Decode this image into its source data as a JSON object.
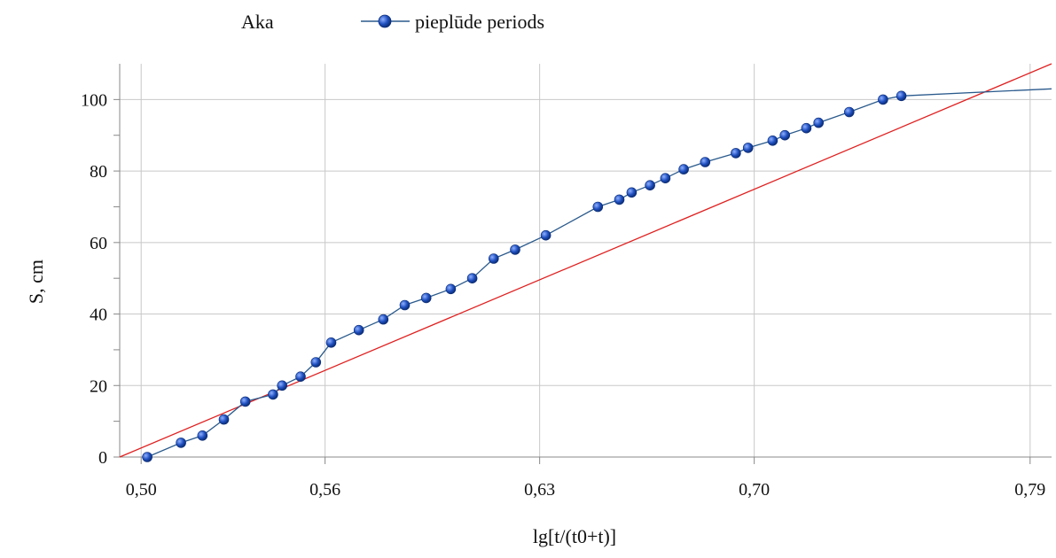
{
  "chart_data": {
    "type": "scatter",
    "title": "",
    "legend": {
      "series_label": "Aka",
      "placement": "top"
    },
    "xlabel": "lg[t/(t0+t)]",
    "ylabel": "S, cm",
    "xlim": [
      0.493,
      0.797
    ],
    "ylim": [
      0,
      110
    ],
    "x_ticks": [
      {
        "value": 0.5,
        "label": "0,50"
      },
      {
        "value": 0.56,
        "label": "0,56"
      },
      {
        "value": 0.63,
        "label": "0,63"
      },
      {
        "value": 0.7,
        "label": "0,70"
      },
      {
        "value": 0.79,
        "label": "0,79"
      }
    ],
    "y_ticks": [
      0,
      20,
      40,
      60,
      80,
      100
    ],
    "grid": true,
    "colors": {
      "series": "#2a5a8c",
      "marker": "#1f4fbf",
      "trend": "#e02020",
      "grid": "#c8c8c8"
    },
    "series": [
      {
        "name": "pieplūde periods",
        "points": [
          {
            "x": 0.502,
            "y": 0
          },
          {
            "x": 0.513,
            "y": 4
          },
          {
            "x": 0.52,
            "y": 6
          },
          {
            "x": 0.527,
            "y": 10.5
          },
          {
            "x": 0.534,
            "y": 15.5
          },
          {
            "x": 0.543,
            "y": 17.5
          },
          {
            "x": 0.546,
            "y": 20
          },
          {
            "x": 0.552,
            "y": 22.5
          },
          {
            "x": 0.557,
            "y": 26.5
          },
          {
            "x": 0.562,
            "y": 32
          },
          {
            "x": 0.571,
            "y": 35.5
          },
          {
            "x": 0.579,
            "y": 38.5
          },
          {
            "x": 0.586,
            "y": 42.5
          },
          {
            "x": 0.593,
            "y": 44.5
          },
          {
            "x": 0.601,
            "y": 47
          },
          {
            "x": 0.608,
            "y": 50
          },
          {
            "x": 0.615,
            "y": 55.5
          },
          {
            "x": 0.622,
            "y": 58
          },
          {
            "x": 0.632,
            "y": 62
          },
          {
            "x": 0.649,
            "y": 70
          },
          {
            "x": 0.656,
            "y": 72
          },
          {
            "x": 0.66,
            "y": 74
          },
          {
            "x": 0.666,
            "y": 76
          },
          {
            "x": 0.671,
            "y": 78
          },
          {
            "x": 0.677,
            "y": 80.5
          },
          {
            "x": 0.684,
            "y": 82.5
          },
          {
            "x": 0.694,
            "y": 85
          },
          {
            "x": 0.698,
            "y": 86.5
          },
          {
            "x": 0.706,
            "y": 88.5
          },
          {
            "x": 0.71,
            "y": 90
          },
          {
            "x": 0.717,
            "y": 92
          },
          {
            "x": 0.721,
            "y": 93.5
          },
          {
            "x": 0.731,
            "y": 96.5
          },
          {
            "x": 0.742,
            "y": 100
          },
          {
            "x": 0.748,
            "y": 101
          },
          {
            "x": 0.797,
            "y": 103
          }
        ]
      },
      {
        "kind": "trendline",
        "points": [
          {
            "x": 0.493,
            "y": 0
          },
          {
            "x": 0.797,
            "y": 110
          }
        ]
      }
    ]
  }
}
